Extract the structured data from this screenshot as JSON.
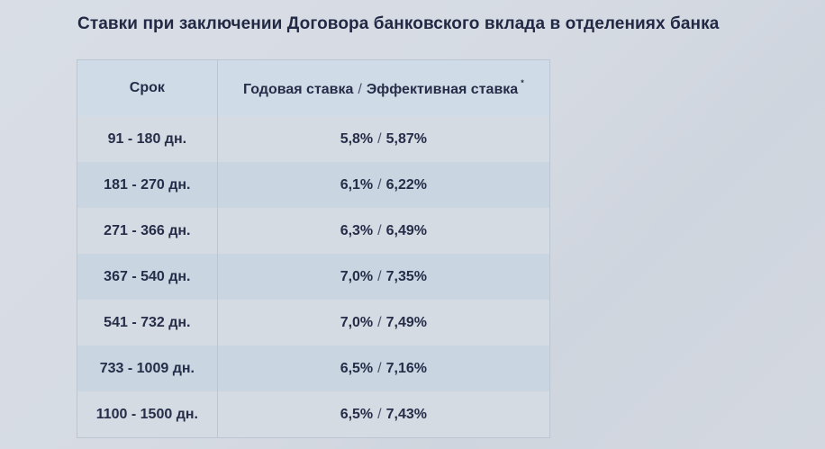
{
  "title": "Ставки при заключении Договора банковского вклада в отделениях банка",
  "table": {
    "headers": {
      "term": "Срок",
      "rate_annual": "Годовая ставка",
      "separator": "/",
      "rate_effective": "Эффективная ставка",
      "footnote_mark": "*"
    },
    "rows": [
      {
        "term": "91 - 180 дн.",
        "annual": "5,8%",
        "effective": "5,87%"
      },
      {
        "term": "181 - 270 дн.",
        "annual": "6,1%",
        "effective": "6,22%"
      },
      {
        "term": "271 - 366 дн.",
        "annual": "6,3%",
        "effective": "6,49%"
      },
      {
        "term": "367 - 540 дн.",
        "annual": "7,0%",
        "effective": "7,35%"
      },
      {
        "term": "541 - 732 дн.",
        "annual": "7,0%",
        "effective": "7,49%"
      },
      {
        "term": "733 - 1009 дн.",
        "annual": "6,5%",
        "effective": "7,16%"
      },
      {
        "term": "1100 - 1500 дн.",
        "annual": "6,5%",
        "effective": "7,43%"
      }
    ]
  }
}
